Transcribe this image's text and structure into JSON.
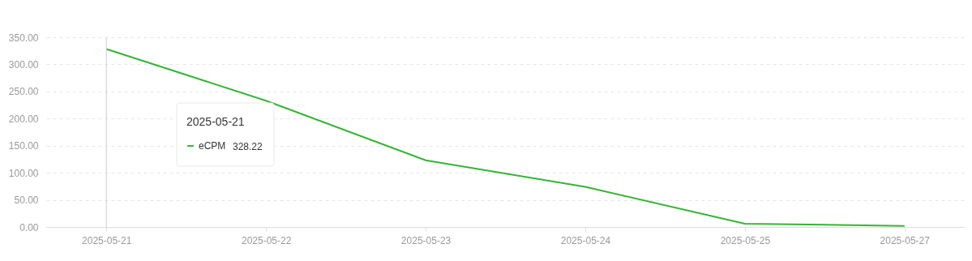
{
  "chart_data": {
    "type": "line",
    "categories": [
      "2025-05-21",
      "2025-05-22",
      "2025-05-23",
      "2025-05-24",
      "2025-05-25",
      "2025-05-27"
    ],
    "series": [
      {
        "name": "eCPM",
        "color": "#35b535",
        "values": [
          328.22,
          233,
          123,
          74,
          6,
          2
        ]
      }
    ],
    "ylim": [
      0,
      350
    ],
    "yticks": [
      {
        "value": 0,
        "label": "0.00"
      },
      {
        "value": 50,
        "label": "50.00"
      },
      {
        "value": 100,
        "label": "100.00"
      },
      {
        "value": 150,
        "label": "150.00"
      },
      {
        "value": 200,
        "label": "200.00"
      },
      {
        "value": 250,
        "label": "250.00"
      },
      {
        "value": 300,
        "label": "300.00"
      },
      {
        "value": 350,
        "label": "350.00"
      }
    ],
    "grid": "y",
    "legend": "left",
    "marker": "none",
    "line_style": "solid",
    "ref_lines": [
      {
        "axis": "x",
        "value": "2025-05-21",
        "color": "#cccccc"
      }
    ],
    "annotations": [
      "2025-05-21",
      "328.22"
    ]
  }
}
